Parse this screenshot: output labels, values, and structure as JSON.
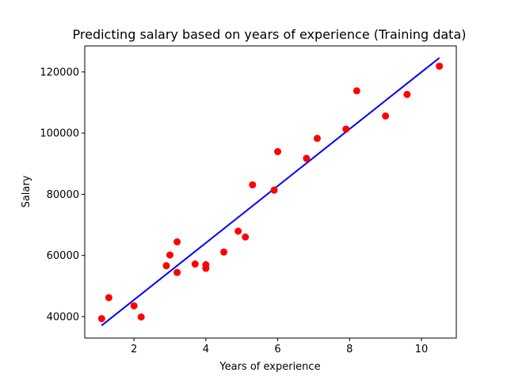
{
  "chart_data": {
    "type": "scatter",
    "title": "Predicting salary based on years of experience (Training data)",
    "xlabel": "Years of experience",
    "ylabel": "Salary",
    "xlim": [
      0.63,
      10.97
    ],
    "ylim": [
      33000,
      128500
    ],
    "xticks": [
      2,
      4,
      6,
      8,
      10
    ],
    "yticks": [
      40000,
      60000,
      80000,
      100000,
      120000
    ],
    "grid": false,
    "legend": "none",
    "series": [
      {
        "type": "scatter",
        "color": "#ff0000",
        "points": [
          [
            1.1,
            39343
          ],
          [
            1.3,
            46205
          ],
          [
            2.0,
            43525
          ],
          [
            2.2,
            39891
          ],
          [
            2.9,
            56642
          ],
          [
            3.0,
            60150
          ],
          [
            3.2,
            54445
          ],
          [
            3.2,
            64445
          ],
          [
            3.7,
            57189
          ],
          [
            4.0,
            56957
          ],
          [
            4.0,
            55794
          ],
          [
            4.5,
            61111
          ],
          [
            4.9,
            67938
          ],
          [
            5.1,
            66029
          ],
          [
            5.3,
            83088
          ],
          [
            5.9,
            81363
          ],
          [
            6.0,
            93940
          ],
          [
            6.8,
            91738
          ],
          [
            7.1,
            98273
          ],
          [
            7.9,
            101302
          ],
          [
            8.2,
            113812
          ],
          [
            9.0,
            105582
          ],
          [
            9.6,
            112635
          ],
          [
            10.5,
            121872
          ]
        ]
      },
      {
        "type": "line",
        "color": "#0000ff",
        "points": [
          [
            1.1,
            37100
          ],
          [
            10.5,
            124600
          ]
        ]
      }
    ]
  }
}
